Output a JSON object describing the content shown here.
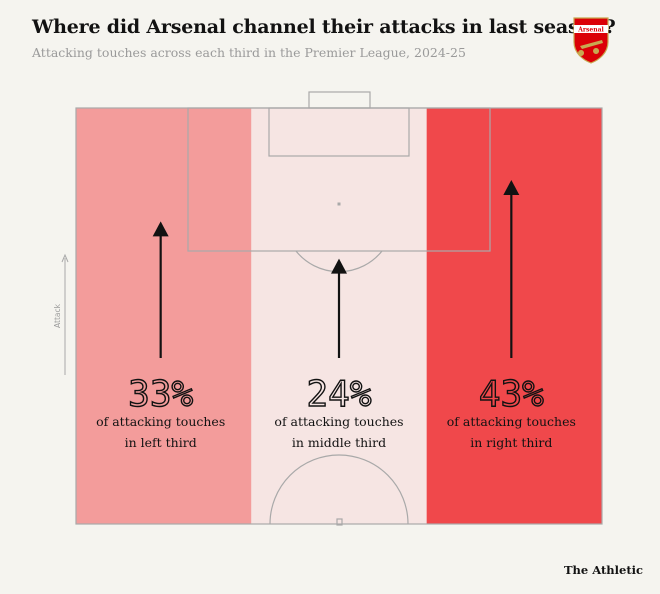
{
  "header": {
    "title": "Where did Arsenal channel their attacks in last season?",
    "subtitle": "Attacking touches across each third in the Premier League, 2024-25",
    "crest_text": "Arsenal"
  },
  "axis": {
    "direction_label": "Attack"
  },
  "footer": {
    "source": "The Athletic"
  },
  "colors": {
    "background": "#f5f4ef",
    "left_third": "#f39c9b",
    "middle_third": "#f6e5e3",
    "right_third": "#f0484b",
    "pitch_lines": "#a9a9a9",
    "arrow": "#121212",
    "crest_red": "#db0007"
  },
  "chart_data": {
    "type": "bar",
    "categories": [
      "left third",
      "middle third",
      "right third"
    ],
    "values": [
      33,
      24,
      43
    ],
    "unit": "%",
    "value_labels": [
      "33%",
      "24%",
      "43%"
    ],
    "descriptions": [
      [
        "of attacking touches",
        "in left third"
      ],
      [
        "of attacking touches",
        "in middle third"
      ],
      [
        "of attacking touches",
        "in right third"
      ]
    ],
    "colors": [
      "#f39c9b",
      "#f6e5e3",
      "#f0484b"
    ],
    "title": "Where did Arsenal channel their attacks in last season?",
    "subtitle": "Attacking touches across each third in the Premier League, 2024-25",
    "xlabel": "",
    "ylabel": "Attack"
  }
}
